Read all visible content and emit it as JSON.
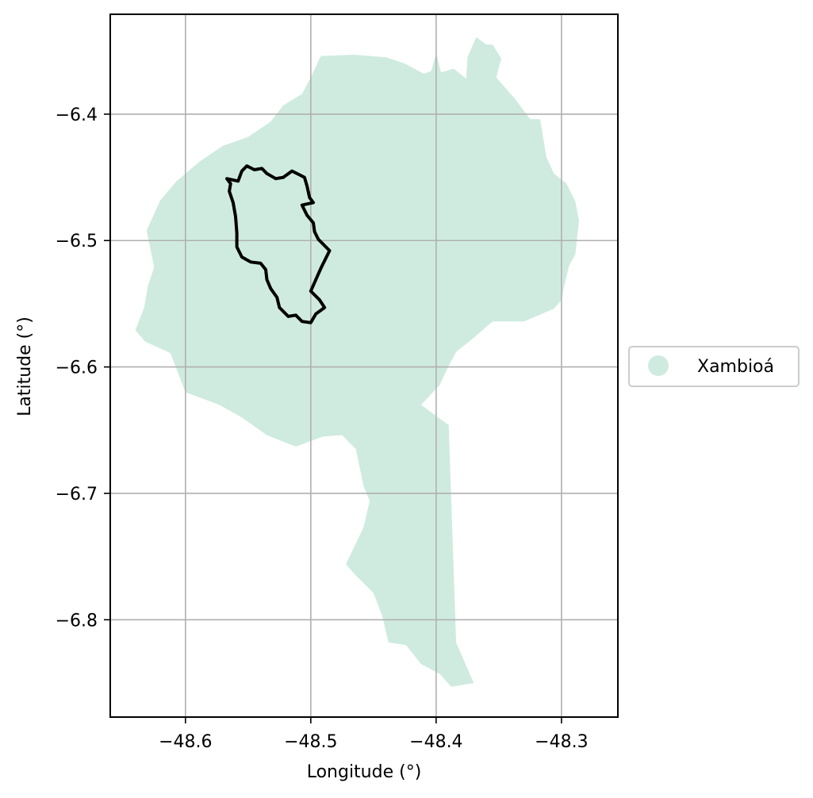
{
  "chart_data": {
    "type": "map",
    "xlabel": "Longitude (°)",
    "ylabel": "Latitude (°)",
    "xlim": [
      -48.66,
      -48.255
    ],
    "ylim": [
      -6.877,
      -6.321
    ],
    "xticks": [
      {
        "value": -48.6,
        "label": "−48.6"
      },
      {
        "value": -48.5,
        "label": "−48.5"
      },
      {
        "value": -48.4,
        "label": "−48.4"
      },
      {
        "value": -48.3,
        "label": "−48.3"
      }
    ],
    "yticks": [
      {
        "value": -6.4,
        "label": "−6.4"
      },
      {
        "value": -6.5,
        "label": "−6.5"
      },
      {
        "value": -6.6,
        "label": "−6.6"
      },
      {
        "value": -6.7,
        "label": "−6.7"
      },
      {
        "value": -6.8,
        "label": "−6.8"
      }
    ],
    "grid": true,
    "legend": {
      "placement": "right",
      "entries": [
        {
          "label": "Xambioá",
          "color": "#cfebdf"
        }
      ]
    },
    "region": {
      "name": "Xambioá",
      "color": "#cfebdf",
      "polygon": [
        [
          -48.4,
          -6.352
        ],
        [
          -48.396,
          -6.367
        ],
        [
          -48.386,
          -6.364
        ],
        [
          -48.376,
          -6.372
        ],
        [
          -48.375,
          -6.355
        ],
        [
          -48.368,
          -6.339
        ],
        [
          -48.36,
          -6.345
        ],
        [
          -48.355,
          -6.345
        ],
        [
          -48.348,
          -6.356
        ],
        [
          -48.352,
          -6.371
        ],
        [
          -48.337,
          -6.388
        ],
        [
          -48.325,
          -6.404
        ],
        [
          -48.317,
          -6.404
        ],
        [
          -48.312,
          -6.434
        ],
        [
          -48.306,
          -6.447
        ],
        [
          -48.296,
          -6.455
        ],
        [
          -48.289,
          -6.469
        ],
        [
          -48.286,
          -6.484
        ],
        [
          -48.289,
          -6.511
        ],
        [
          -48.294,
          -6.52
        ],
        [
          -48.298,
          -6.537
        ],
        [
          -48.3,
          -6.547
        ],
        [
          -48.306,
          -6.554
        ],
        [
          -48.33,
          -6.564
        ],
        [
          -48.355,
          -6.564
        ],
        [
          -48.37,
          -6.577
        ],
        [
          -48.384,
          -6.588
        ],
        [
          -48.391,
          -6.601
        ],
        [
          -48.397,
          -6.614
        ],
        [
          -48.412,
          -6.63
        ],
        [
          -48.39,
          -6.646
        ],
        [
          -48.384,
          -6.818
        ],
        [
          -48.37,
          -6.85
        ],
        [
          -48.388,
          -6.853
        ],
        [
          -48.397,
          -6.843
        ],
        [
          -48.412,
          -6.835
        ],
        [
          -48.424,
          -6.82
        ],
        [
          -48.438,
          -6.818
        ],
        [
          -48.443,
          -6.797
        ],
        [
          -48.45,
          -6.779
        ],
        [
          -48.465,
          -6.764
        ],
        [
          -48.472,
          -6.756
        ],
        [
          -48.458,
          -6.727
        ],
        [
          -48.453,
          -6.706
        ],
        [
          -48.458,
          -6.694
        ],
        [
          -48.464,
          -6.665
        ],
        [
          -48.475,
          -6.654
        ],
        [
          -48.49,
          -6.655
        ],
        [
          -48.512,
          -6.663
        ],
        [
          -48.535,
          -6.654
        ],
        [
          -48.555,
          -6.64
        ],
        [
          -48.573,
          -6.63
        ],
        [
          -48.6,
          -6.62
        ],
        [
          -48.612,
          -6.589
        ],
        [
          -48.632,
          -6.58
        ],
        [
          -48.64,
          -6.571
        ],
        [
          -48.633,
          -6.553
        ],
        [
          -48.63,
          -6.536
        ],
        [
          -48.625,
          -6.521
        ],
        [
          -48.631,
          -6.492
        ],
        [
          -48.62,
          -6.468
        ],
        [
          -48.607,
          -6.453
        ],
        [
          -48.588,
          -6.437
        ],
        [
          -48.57,
          -6.425
        ],
        [
          -48.55,
          -6.418
        ],
        [
          -48.532,
          -6.406
        ],
        [
          -48.522,
          -6.393
        ],
        [
          -48.507,
          -6.384
        ],
        [
          -48.5,
          -6.371
        ],
        [
          -48.492,
          -6.354
        ],
        [
          -48.465,
          -6.353
        ],
        [
          -48.44,
          -6.355
        ],
        [
          -48.425,
          -6.36
        ],
        [
          -48.41,
          -6.368
        ],
        [
          -48.404,
          -6.366
        ]
      ]
    },
    "highlight_outline": {
      "color": "#000000",
      "polygon": [
        [
          -48.551,
          -6.441
        ],
        [
          -48.545,
          -6.444
        ],
        [
          -48.539,
          -6.443
        ],
        [
          -48.535,
          -6.447
        ],
        [
          -48.528,
          -6.451
        ],
        [
          -48.522,
          -6.45
        ],
        [
          -48.515,
          -6.445
        ],
        [
          -48.509,
          -6.448
        ],
        [
          -48.505,
          -6.45
        ],
        [
          -48.503,
          -6.457
        ],
        [
          -48.501,
          -6.466
        ],
        [
          -48.498,
          -6.47
        ],
        [
          -48.507,
          -6.472
        ],
        [
          -48.503,
          -6.48
        ],
        [
          -48.498,
          -6.486
        ],
        [
          -48.497,
          -6.493
        ],
        [
          -48.494,
          -6.499
        ],
        [
          -48.485,
          -6.508
        ],
        [
          -48.492,
          -6.522
        ],
        [
          -48.5,
          -6.54
        ],
        [
          -48.493,
          -6.547
        ],
        [
          -48.489,
          -6.553
        ],
        [
          -48.496,
          -6.558
        ],
        [
          -48.5,
          -6.565
        ],
        [
          -48.507,
          -6.564
        ],
        [
          -48.512,
          -6.559
        ],
        [
          -48.518,
          -6.56
        ],
        [
          -48.525,
          -6.553
        ],
        [
          -48.527,
          -6.545
        ],
        [
          -48.532,
          -6.538
        ],
        [
          -48.535,
          -6.531
        ],
        [
          -48.536,
          -6.523
        ],
        [
          -48.54,
          -6.518
        ],
        [
          -48.548,
          -6.517
        ],
        [
          -48.555,
          -6.513
        ],
        [
          -48.559,
          -6.505
        ],
        [
          -48.559,
          -6.494
        ],
        [
          -48.56,
          -6.481
        ],
        [
          -48.562,
          -6.47
        ],
        [
          -48.565,
          -6.461
        ],
        [
          -48.564,
          -6.455
        ],
        [
          -48.567,
          -6.451
        ],
        [
          -48.558,
          -6.453
        ],
        [
          -48.555,
          -6.445
        ]
      ]
    }
  }
}
